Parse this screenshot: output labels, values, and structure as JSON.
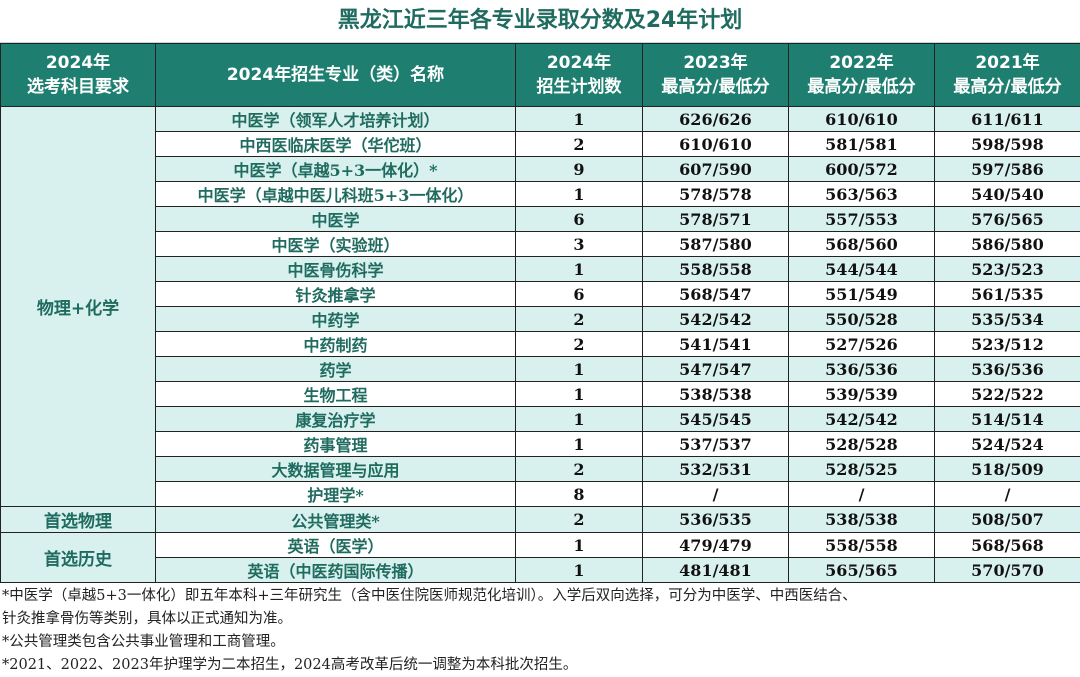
{
  "title": "黑龙江近三年各专业录取分数及24年计划",
  "header": {
    "col1_line1": "2024年",
    "col1_line2": "选考科目要求",
    "col2": "2024年招生专业（类）名称",
    "col3_line1": "2024年",
    "col3_line2": "招生计划数",
    "col4_line1": "2023年",
    "col4_line2": "最高分/最低分",
    "col5_line1": "2022年",
    "col5_line2": "最高分/最低分",
    "col6_line1": "2021年",
    "col6_line2": "最高分/最低分"
  },
  "groups": [
    {
      "label": "物理+化学",
      "rows": [
        {
          "major": "中医学（领军人才培养计划）",
          "plan": "1",
          "y2023": "626/626",
          "y2022": "610/610",
          "y2021": "611/611"
        },
        {
          "major": "中西医临床医学（华佗班）",
          "plan": "2",
          "y2023": "610/610",
          "y2022": "581/581",
          "y2021": "598/598"
        },
        {
          "major": "中医学（卓越5+3一体化）*",
          "plan": "9",
          "y2023": "607/590",
          "y2022": "600/572",
          "y2021": "597/586"
        },
        {
          "major": "中医学（卓越中医儿科班5+3一体化）",
          "plan": "1",
          "y2023": "578/578",
          "y2022": "563/563",
          "y2021": "540/540"
        },
        {
          "major": "中医学",
          "plan": "6",
          "y2023": "578/571",
          "y2022": "557/553",
          "y2021": "576/565"
        },
        {
          "major": "中医学（实验班）",
          "plan": "3",
          "y2023": "587/580",
          "y2022": "568/560",
          "y2021": "586/580"
        },
        {
          "major": "中医骨伤科学",
          "plan": "1",
          "y2023": "558/558",
          "y2022": "544/544",
          "y2021": "523/523"
        },
        {
          "major": "针灸推拿学",
          "plan": "6",
          "y2023": "568/547",
          "y2022": "551/549",
          "y2021": "561/535"
        },
        {
          "major": "中药学",
          "plan": "2",
          "y2023": "542/542",
          "y2022": "550/528",
          "y2021": "535/534"
        },
        {
          "major": "中药制药",
          "plan": "2",
          "y2023": "541/541",
          "y2022": "527/526",
          "y2021": "523/512"
        },
        {
          "major": "药学",
          "plan": "1",
          "y2023": "547/547",
          "y2022": "536/536",
          "y2021": "536/536"
        },
        {
          "major": "生物工程",
          "plan": "1",
          "y2023": "538/538",
          "y2022": "539/539",
          "y2021": "522/522"
        },
        {
          "major": "康复治疗学",
          "plan": "1",
          "y2023": "545/545",
          "y2022": "542/542",
          "y2021": "514/514"
        },
        {
          "major": "药事管理",
          "plan": "1",
          "y2023": "537/537",
          "y2022": "528/528",
          "y2021": "524/524"
        },
        {
          "major": "大数据管理与应用",
          "plan": "2",
          "y2023": "532/531",
          "y2022": "528/525",
          "y2021": "518/509"
        },
        {
          "major": "护理学*",
          "plan": "8",
          "y2023": "/",
          "y2022": "/",
          "y2021": "/"
        }
      ]
    },
    {
      "label": "首选物理",
      "rows": [
        {
          "major": "公共管理类*",
          "plan": "2",
          "y2023": "536/535",
          "y2022": "538/538",
          "y2021": "508/507"
        }
      ]
    },
    {
      "label": "首选历史",
      "rows": [
        {
          "major": "英语（医学）",
          "plan": "1",
          "y2023": "479/479",
          "y2022": "558/558",
          "y2021": "568/568"
        },
        {
          "major": "英语（中医药国际传播）",
          "plan": "1",
          "y2023": "481/481",
          "y2022": "565/565",
          "y2021": "570/570"
        }
      ]
    }
  ],
  "notes": [
    "*中医学（卓越5+3一体化）即五年本科+三年研究生（含中医住院医师规范化培训）。入学后双向选择，可分为中医学、中西医结合、",
    "针灸推拿骨伤等类别，具体以正式通知为准。",
    "*公共管理类包含公共事业管理和工商管理。",
    "*2021、2022、2023年护理学为二本招生，2024高考改革后统一调整为本科批次招生。"
  ],
  "colors": {
    "header_bg": "#1e7f70",
    "row_shade": "#d9f1ee",
    "title_text": "#1f6b5f"
  }
}
